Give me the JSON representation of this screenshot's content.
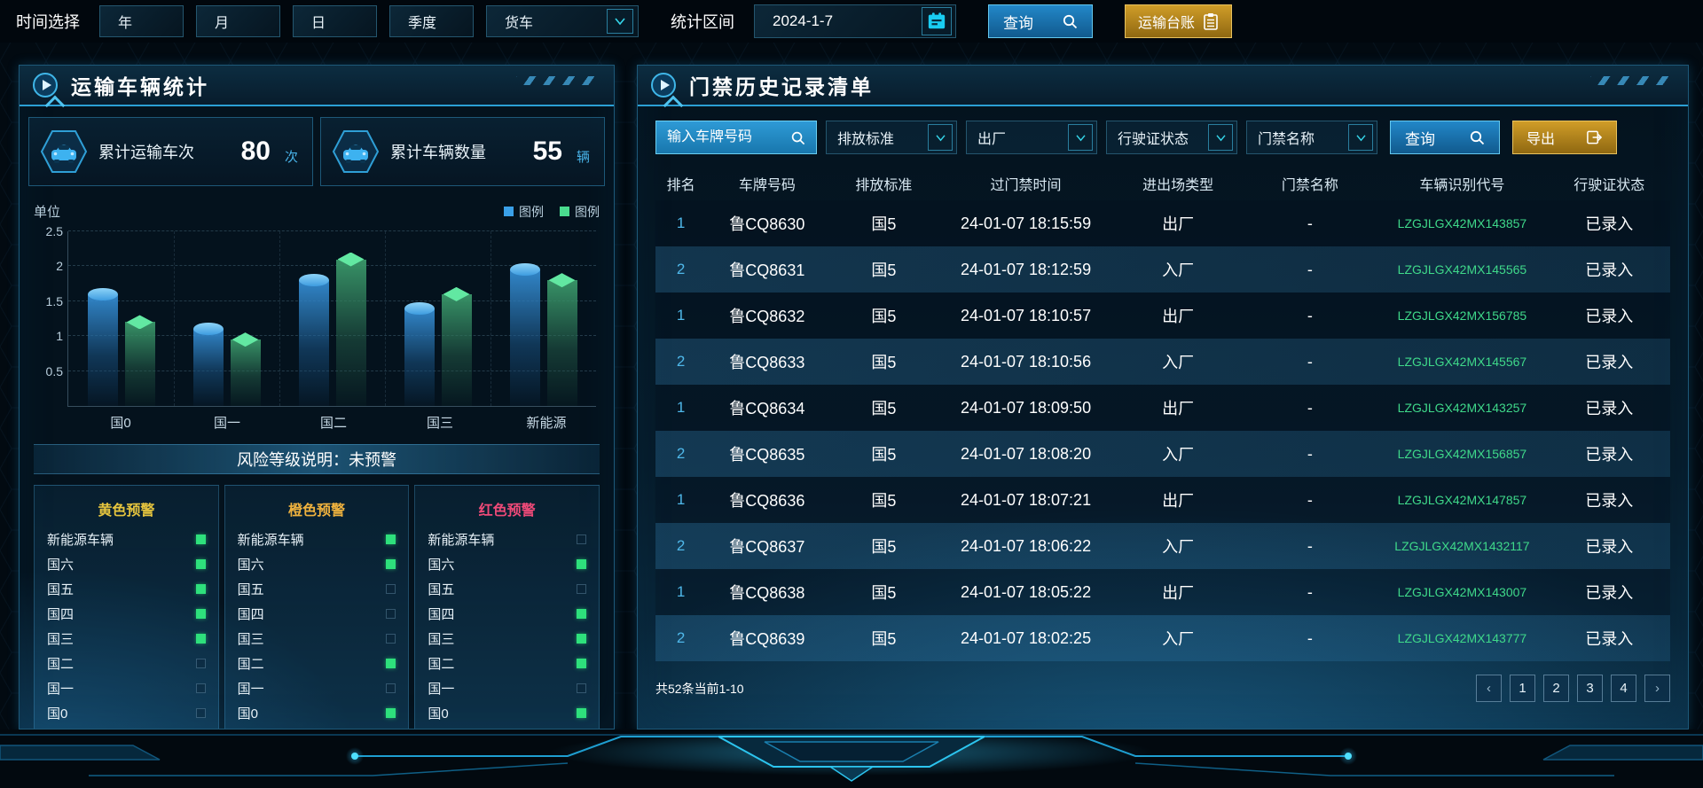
{
  "colors": {
    "accent_cyan": "#2b9fd4",
    "accent_gold": "#d09d28",
    "rank_blue": "#4fb8ea",
    "vin_green": "#3fd98a",
    "warn_yellow": "#e6c53e",
    "warn_orange": "#efb23e",
    "warn_red": "#ef4a78",
    "bar_blue": "#3aa0e8",
    "bar_green": "#4adb8e"
  },
  "topbar": {
    "time_label": "时间选择",
    "period_buttons": [
      "年",
      "月",
      "日",
      "季度"
    ],
    "vehicle_select_value": "货车",
    "range_label": "统计区间",
    "date_value": "2024-1-7",
    "query_label": "查询",
    "ledger_label": "运输台账"
  },
  "left_panel": {
    "title": "运输车辆统计",
    "stats": [
      {
        "label": "累计运输车次",
        "value": "80",
        "unit": "次"
      },
      {
        "label": "累计车辆数量",
        "value": "55",
        "unit": "辆"
      }
    ],
    "risk_band": "风险等级说明：未预警",
    "warnings": [
      {
        "title": "黄色预警",
        "color": "#e6c53e",
        "items": [
          {
            "label": "新能源车辆",
            "on": true
          },
          {
            "label": "国六",
            "on": true
          },
          {
            "label": "国五",
            "on": true
          },
          {
            "label": "国四",
            "on": true
          },
          {
            "label": "国三",
            "on": true
          },
          {
            "label": "国二",
            "on": false
          },
          {
            "label": "国一",
            "on": false
          },
          {
            "label": "国0",
            "on": false
          }
        ]
      },
      {
        "title": "橙色预警",
        "color": "#efb23e",
        "items": [
          {
            "label": "新能源车辆",
            "on": true
          },
          {
            "label": "国六",
            "on": true
          },
          {
            "label": "国五",
            "on": false
          },
          {
            "label": "国四",
            "on": false
          },
          {
            "label": "国三",
            "on": false
          },
          {
            "label": "国二",
            "on": true
          },
          {
            "label": "国一",
            "on": false
          },
          {
            "label": "国0",
            "on": true
          }
        ]
      },
      {
        "title": "红色预警",
        "color": "#ef4a78",
        "items": [
          {
            "label": "新能源车辆",
            "on": false
          },
          {
            "label": "国六",
            "on": true
          },
          {
            "label": "国五",
            "on": false
          },
          {
            "label": "国四",
            "on": true
          },
          {
            "label": "国三",
            "on": true
          },
          {
            "label": "国二",
            "on": true
          },
          {
            "label": "国一",
            "on": false
          },
          {
            "label": "国0",
            "on": true
          }
        ]
      }
    ]
  },
  "chart_data": {
    "type": "bar",
    "title": "",
    "unit_label": "单位",
    "categories": [
      "国0",
      "国一",
      "国二",
      "国三",
      "新能源"
    ],
    "series": [
      {
        "name": "图例",
        "color": "#3aa0e8",
        "values": [
          1.6,
          1.1,
          1.8,
          1.4,
          1.95
        ]
      },
      {
        "name": "图例",
        "color": "#4adb8e",
        "values": [
          1.2,
          0.95,
          2.1,
          1.6,
          1.8
        ]
      }
    ],
    "yticks": [
      0.5,
      1,
      1.5,
      2,
      2.5
    ],
    "ylim": [
      0,
      2.5
    ],
    "grid": true,
    "legend_position": "top-right"
  },
  "right_panel": {
    "title": "门禁历史记录清单",
    "filters": {
      "plate_placeholder": "输入车牌号码",
      "dropdowns": [
        "排放标准",
        "出厂",
        "行驶证状态",
        "门禁名称"
      ],
      "query_label": "查询",
      "export_label": "导出"
    },
    "table": {
      "headers": [
        "排名",
        "车牌号码",
        "排放标准",
        "过门禁时间",
        "进出场类型",
        "门禁名称",
        "车辆识别代号",
        "行驶证状态"
      ],
      "rows": [
        {
          "rank": "1",
          "plate": "鲁CQ8630",
          "standard": "国5",
          "time": "24-01-07 18:15:59",
          "direction": "出厂",
          "gate": "-",
          "vin": "LZGJLGX42MX143857",
          "status": "已录入"
        },
        {
          "rank": "2",
          "plate": "鲁CQ8631",
          "standard": "国5",
          "time": "24-01-07 18:12:59",
          "direction": "入厂",
          "gate": "-",
          "vin": "LZGJLGX42MX145565",
          "status": "已录入"
        },
        {
          "rank": "1",
          "plate": "鲁CQ8632",
          "standard": "国5",
          "time": "24-01-07 18:10:57",
          "direction": "出厂",
          "gate": "-",
          "vin": "LZGJLGX42MX156785",
          "status": "已录入"
        },
        {
          "rank": "2",
          "plate": "鲁CQ8633",
          "standard": "国5",
          "time": "24-01-07 18:10:56",
          "direction": "入厂",
          "gate": "-",
          "vin": "LZGJLGX42MX145567",
          "status": "已录入"
        },
        {
          "rank": "1",
          "plate": "鲁CQ8634",
          "standard": "国5",
          "time": "24-01-07 18:09:50",
          "direction": "出厂",
          "gate": "-",
          "vin": "LZGJLGX42MX143257",
          "status": "已录入"
        },
        {
          "rank": "2",
          "plate": "鲁CQ8635",
          "standard": "国5",
          "time": "24-01-07 18:08:20",
          "direction": "入厂",
          "gate": "-",
          "vin": "LZGJLGX42MX156857",
          "status": "已录入"
        },
        {
          "rank": "1",
          "plate": "鲁CQ8636",
          "standard": "国5",
          "time": "24-01-07 18:07:21",
          "direction": "出厂",
          "gate": "-",
          "vin": "LZGJLGX42MX147857",
          "status": "已录入"
        },
        {
          "rank": "2",
          "plate": "鲁CQ8637",
          "standard": "国5",
          "time": "24-01-07 18:06:22",
          "direction": "入厂",
          "gate": "-",
          "vin": "LZGJLGX42MX1432117",
          "status": "已录入"
        },
        {
          "rank": "1",
          "plate": "鲁CQ8638",
          "standard": "国5",
          "time": "24-01-07 18:05:22",
          "direction": "出厂",
          "gate": "-",
          "vin": "LZGJLGX42MX143007",
          "status": "已录入"
        },
        {
          "rank": "2",
          "plate": "鲁CQ8639",
          "standard": "国5",
          "time": "24-01-07 18:02:25",
          "direction": "入厂",
          "gate": "-",
          "vin": "LZGJLGX42MX143777",
          "status": "已录入"
        }
      ]
    },
    "footer": {
      "summary": "共52条当前1-10",
      "prev": "‹",
      "next": "›",
      "pages": [
        "1",
        "2",
        "3",
        "4"
      ]
    }
  }
}
